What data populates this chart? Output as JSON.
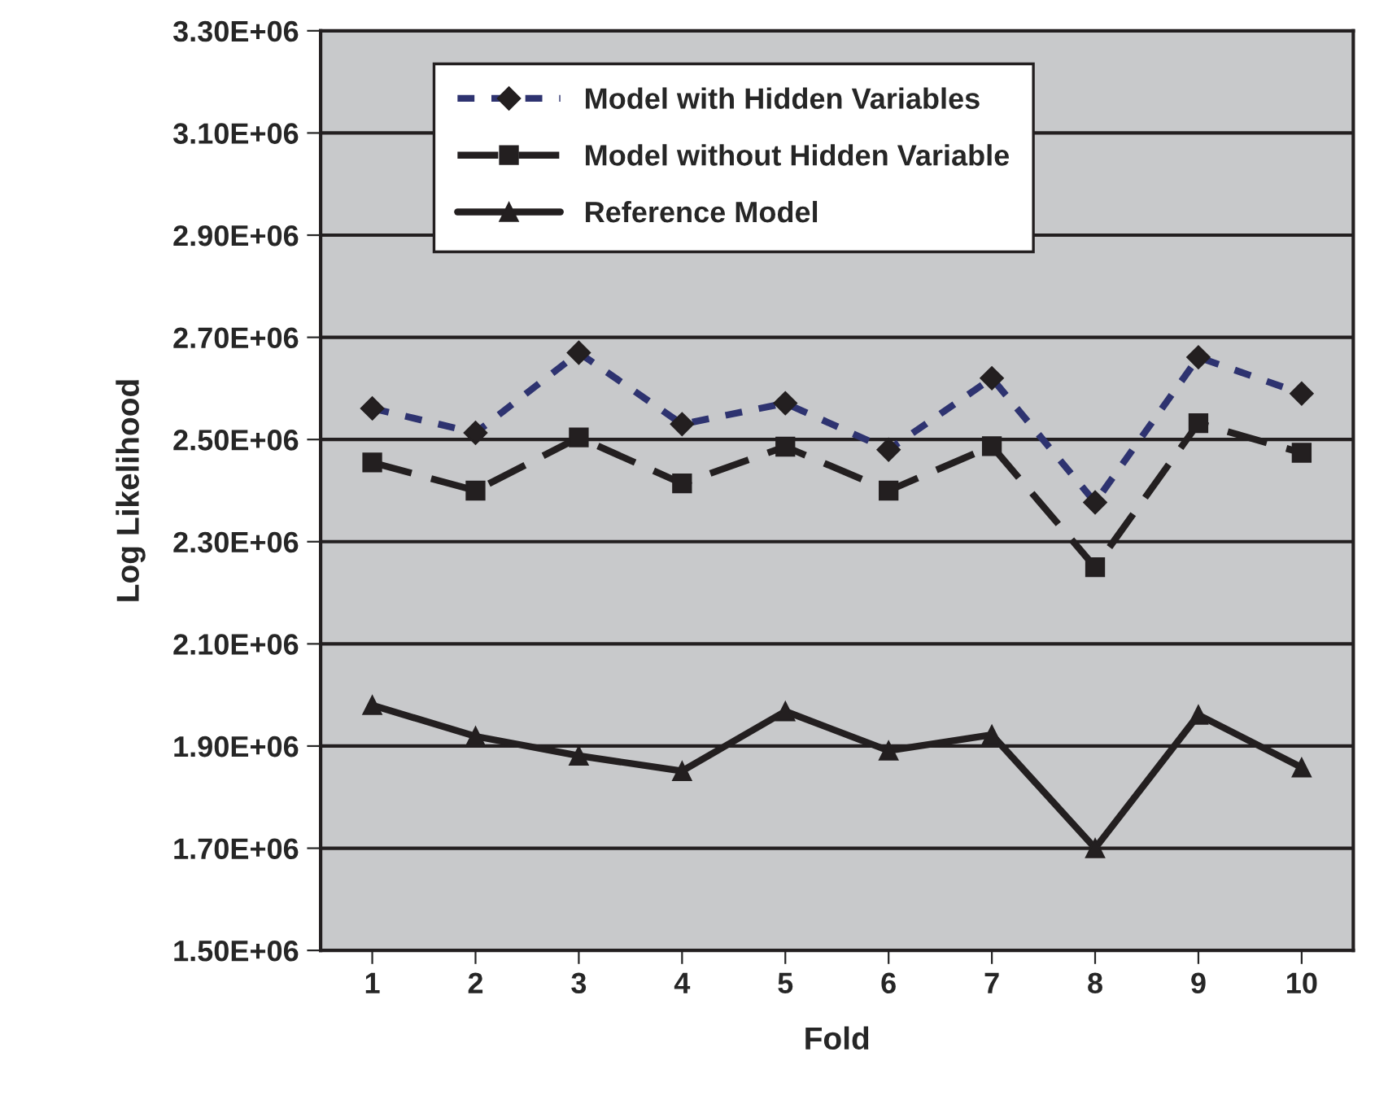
{
  "chart_data": {
    "type": "line",
    "xlabel": "Fold",
    "ylabel": "Log Likelihood",
    "categories": [
      "1",
      "2",
      "3",
      "4",
      "5",
      "6",
      "7",
      "8",
      "9",
      "10"
    ],
    "series": [
      {
        "name": "Model with Hidden Variables",
        "color": "#2e3370",
        "marker": "diamond",
        "line_style": "dotted",
        "values": [
          2561000,
          2513000,
          2670000,
          2530000,
          2571000,
          2480000,
          2620000,
          2377000,
          2661000,
          2590000
        ]
      },
      {
        "name": "Model without Hidden Variable",
        "color": "#231f20",
        "marker": "square",
        "line_style": "dashed",
        "values": [
          2455000,
          2400000,
          2504000,
          2414000,
          2486000,
          2400000,
          2487000,
          2250000,
          2532000,
          2474000
        ]
      },
      {
        "name": "Reference Model",
        "color": "#231f20",
        "marker": "triangle",
        "line_style": "solid",
        "values": [
          1980000,
          1919000,
          1881000,
          1851000,
          1968000,
          1891000,
          1922000,
          1700000,
          1961000,
          1858000
        ]
      }
    ],
    "ylim": [
      1500000,
      3300000
    ],
    "yticks": [
      {
        "value": 1500000,
        "label": "1.50E+06"
      },
      {
        "value": 1700000,
        "label": "1.70E+06"
      },
      {
        "value": 1900000,
        "label": "1.90E+06"
      },
      {
        "value": 2100000,
        "label": "2.10E+06"
      },
      {
        "value": 2300000,
        "label": "2.30E+06"
      },
      {
        "value": 2500000,
        "label": "2.50E+06"
      },
      {
        "value": 2700000,
        "label": "2.70E+06"
      },
      {
        "value": 2900000,
        "label": "2.90E+06"
      },
      {
        "value": 3100000,
        "label": "3.10E+06"
      },
      {
        "value": 3300000,
        "label": "3.30E+06"
      }
    ],
    "grid": "y",
    "legend": "top"
  }
}
